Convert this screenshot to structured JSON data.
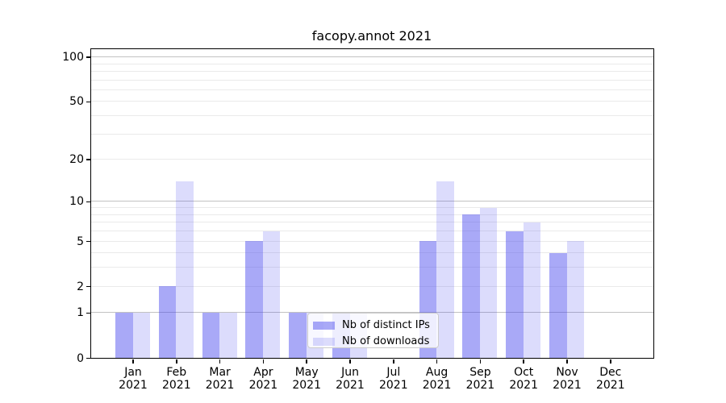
{
  "colors": {
    "bar_distinct_ips": "rgba(68,68,238,0.46)",
    "bar_downloads": "rgba(68,68,238,0.19)",
    "grid_major": "#c2c2c2",
    "grid_minor": "#eaeaea",
    "axis": "#000000",
    "legend_border": "#cccccc",
    "legend_bg": "rgba(255,255,255,0.8)"
  },
  "chart_data": {
    "type": "bar",
    "title": "facopy.annot 2021",
    "categories": [
      "Jan",
      "Feb",
      "Mar",
      "Apr",
      "May",
      "Jun",
      "Jul",
      "Aug",
      "Sep",
      "Oct",
      "Nov",
      "Dec"
    ],
    "year": "2021",
    "series": [
      {
        "name": "Nb of distinct IPs",
        "values": [
          1,
          2,
          1,
          5,
          1,
          1,
          0,
          5,
          8,
          6,
          4,
          0
        ]
      },
      {
        "name": "Nb of downloads",
        "values": [
          1,
          14,
          1,
          6,
          1,
          1,
          0,
          14,
          9,
          7,
          5,
          0
        ]
      }
    ],
    "xlabel": "",
    "ylabel": "",
    "yscale": "log1p",
    "ylim": [
      0,
      113
    ],
    "ytick_values": [
      0,
      1,
      2,
      5,
      10,
      20,
      50,
      100
    ],
    "ytick_labels": [
      "0",
      "1",
      "2",
      "5",
      "10",
      "20",
      "50",
      "100"
    ],
    "grid_major_values": [
      1,
      10,
      100
    ],
    "grid_minor_values": [
      2,
      3,
      4,
      5,
      6,
      7,
      8,
      9,
      20,
      30,
      40,
      50,
      60,
      70,
      80,
      90
    ],
    "grid": true,
    "legend_position": "lower center"
  }
}
